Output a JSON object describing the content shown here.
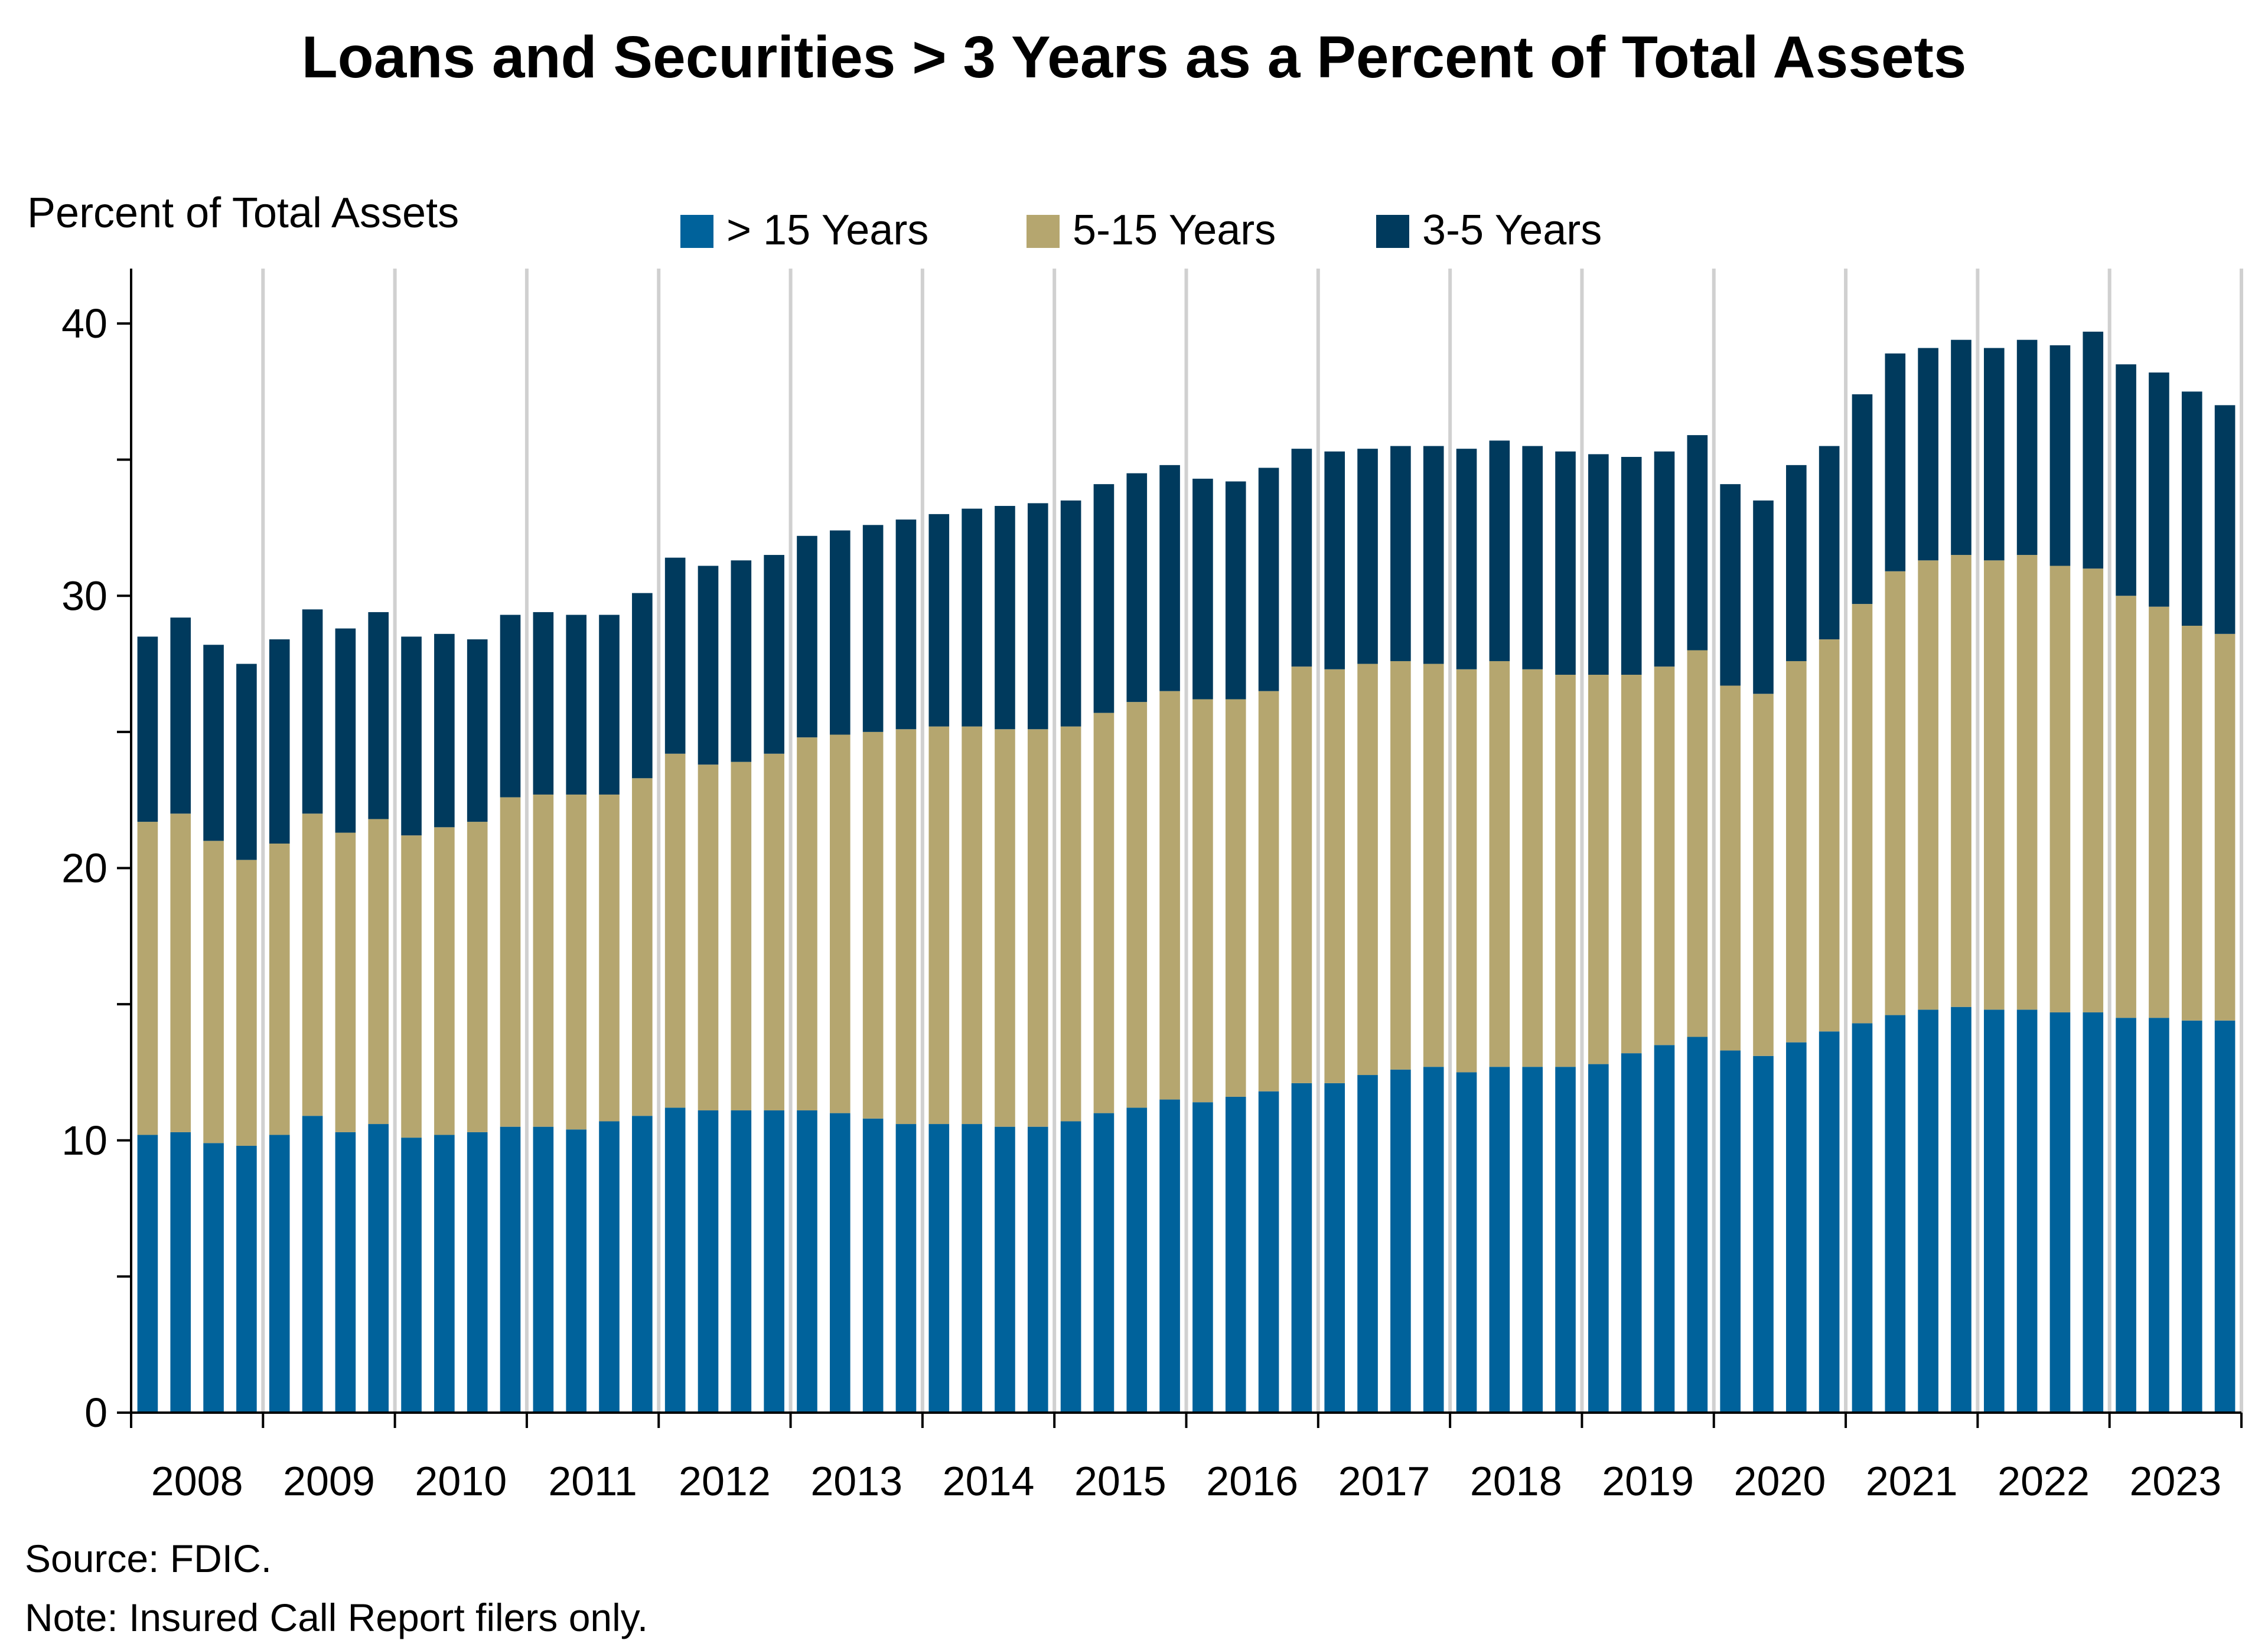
{
  "chart_data": {
    "type": "bar",
    "stacked": true,
    "title": "Loans and Securities > 3 Years as a Percent of Total Assets",
    "ylabel": "Percent of Total Assets",
    "ylim": [
      0,
      42
    ],
    "yticks": [
      0,
      10,
      20,
      30,
      40
    ],
    "grid": "vertical year dividers",
    "legend_position": "top",
    "year_labels": [
      "2008",
      "2009",
      "2010",
      "2011",
      "2012",
      "2013",
      "2014",
      "2015",
      "2016",
      "2017",
      "2018",
      "2019",
      "2020",
      "2021",
      "2022",
      "2023"
    ],
    "categories": [
      "2008Q1",
      "2008Q2",
      "2008Q3",
      "2008Q4",
      "2009Q1",
      "2009Q2",
      "2009Q3",
      "2009Q4",
      "2010Q1",
      "2010Q2",
      "2010Q3",
      "2010Q4",
      "2011Q1",
      "2011Q2",
      "2011Q3",
      "2011Q4",
      "2012Q1",
      "2012Q2",
      "2012Q3",
      "2012Q4",
      "2013Q1",
      "2013Q2",
      "2013Q3",
      "2013Q4",
      "2014Q1",
      "2014Q2",
      "2014Q3",
      "2014Q4",
      "2015Q1",
      "2015Q2",
      "2015Q3",
      "2015Q4",
      "2016Q1",
      "2016Q2",
      "2016Q3",
      "2016Q4",
      "2017Q1",
      "2017Q2",
      "2017Q3",
      "2017Q4",
      "2018Q1",
      "2018Q2",
      "2018Q3",
      "2018Q4",
      "2019Q1",
      "2019Q2",
      "2019Q3",
      "2019Q4",
      "2020Q1",
      "2020Q2",
      "2020Q3",
      "2020Q4",
      "2021Q1",
      "2021Q2",
      "2021Q3",
      "2021Q4",
      "2022Q1",
      "2022Q2",
      "2022Q3",
      "2022Q4",
      "2023Q1",
      "2023Q2",
      "2023Q3",
      "2023Q4"
    ],
    "series": [
      {
        "name": "> 15 Years",
        "color": "#00629b",
        "values": [
          10.2,
          10.3,
          9.9,
          9.8,
          10.2,
          10.9,
          10.3,
          10.6,
          10.1,
          10.2,
          10.3,
          10.5,
          10.5,
          10.4,
          10.7,
          10.9,
          11.2,
          11.1,
          11.1,
          11.1,
          11.1,
          11.0,
          10.8,
          10.6,
          10.6,
          10.6,
          10.5,
          10.5,
          10.7,
          11.0,
          11.2,
          11.5,
          11.4,
          11.6,
          11.8,
          12.1,
          12.1,
          12.4,
          12.6,
          12.7,
          12.5,
          12.7,
          12.7,
          12.7,
          12.8,
          13.2,
          13.5,
          13.8,
          13.3,
          13.1,
          13.6,
          14.0,
          14.3,
          14.6,
          14.8,
          14.9,
          14.8,
          14.8,
          14.7,
          14.7,
          14.5,
          14.5,
          14.4,
          14.4
        ]
      },
      {
        "name": "5-15 Years",
        "color": "#b5a66f",
        "values": [
          11.5,
          11.7,
          11.1,
          10.5,
          10.7,
          11.1,
          11.0,
          11.2,
          11.1,
          11.3,
          11.4,
          12.1,
          12.2,
          12.3,
          12.0,
          12.4,
          13.0,
          12.7,
          12.8,
          13.1,
          13.7,
          13.9,
          14.2,
          14.5,
          14.6,
          14.6,
          14.6,
          14.6,
          14.5,
          14.7,
          14.9,
          15.0,
          14.8,
          14.6,
          14.7,
          15.3,
          15.2,
          15.1,
          15.0,
          14.8,
          14.8,
          14.9,
          14.6,
          14.4,
          14.3,
          13.9,
          13.9,
          14.2,
          13.4,
          13.3,
          14.0,
          14.4,
          15.4,
          16.3,
          16.5,
          16.6,
          16.5,
          16.7,
          16.4,
          16.3,
          15.5,
          15.1,
          14.5,
          14.2
        ]
      },
      {
        "name": "3-5 Years",
        "color": "#003a5d",
        "values": [
          6.8,
          7.2,
          7.2,
          7.2,
          7.5,
          7.5,
          7.5,
          7.6,
          7.3,
          7.1,
          6.7,
          6.7,
          6.7,
          6.6,
          6.6,
          6.8,
          7.2,
          7.3,
          7.4,
          7.3,
          7.4,
          7.5,
          7.6,
          7.7,
          7.8,
          8.0,
          8.2,
          8.3,
          8.3,
          8.4,
          8.4,
          8.3,
          8.1,
          8.0,
          8.2,
          8.0,
          8.0,
          7.9,
          7.9,
          8.0,
          8.1,
          8.1,
          8.2,
          8.2,
          8.1,
          8.0,
          7.9,
          7.9,
          7.4,
          7.1,
          7.2,
          7.1,
          7.7,
          8.0,
          7.8,
          7.9,
          7.8,
          7.9,
          8.1,
          8.7,
          8.5,
          8.6,
          8.6,
          8.4
        ]
      }
    ]
  },
  "footer": {
    "source": "Source: FDIC.",
    "note": "Note: Insured Call Report filers only."
  }
}
